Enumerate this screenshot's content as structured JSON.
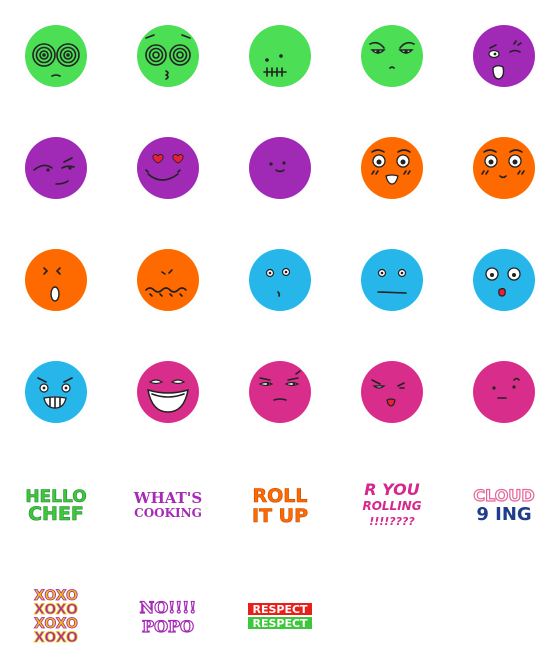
{
  "colors": {
    "green": "#4cde55",
    "purple": "#a029b6",
    "orange": "#ff6a00",
    "blue": "#27b6ea",
    "magenta": "#d92d8b",
    "ink": "#222222"
  },
  "faces": [
    {
      "color": "green",
      "expression": "dizzy-spiral-eyes"
    },
    {
      "color": "green",
      "expression": "dizzy-spiral-eyes-kiss"
    },
    {
      "color": "green",
      "expression": "stitched-mouth"
    },
    {
      "color": "green",
      "expression": "annoyed-eyes"
    },
    {
      "color": "purple",
      "expression": "shocked-wink"
    },
    {
      "color": "purple",
      "expression": "sly-side-eye"
    },
    {
      "color": "purple",
      "expression": "heart-eyes"
    },
    {
      "color": "purple",
      "expression": "small-smile"
    },
    {
      "color": "orange",
      "expression": "blush-grin"
    },
    {
      "color": "orange",
      "expression": "blush-smile"
    },
    {
      "color": "orange",
      "expression": "surprised-o"
    },
    {
      "color": "orange",
      "expression": "wavy-mouth"
    },
    {
      "color": "blue",
      "expression": "small-mouth"
    },
    {
      "color": "blue",
      "expression": "flat-mouth"
    },
    {
      "color": "blue",
      "expression": "wide-eyes-o"
    },
    {
      "color": "blue",
      "expression": "toothy-grin"
    },
    {
      "color": "magenta",
      "expression": "big-laugh"
    },
    {
      "color": "magenta",
      "expression": "smirk"
    },
    {
      "color": "magenta",
      "expression": "angry-pout"
    },
    {
      "color": "magenta",
      "expression": "sleepy"
    }
  ],
  "stickers": [
    {
      "lines": [
        "HELLO",
        "CHEF"
      ],
      "color": "#3ec63c"
    },
    {
      "lines": [
        "WHAT'S",
        "COOKING"
      ],
      "color": "#a52ab5"
    },
    {
      "lines": [
        "ROLL",
        "IT UP"
      ],
      "color": "#ff6a00"
    },
    {
      "lines": [
        "R YOU",
        "ROLLING",
        "!!!!????"
      ],
      "color": "#d6288c"
    },
    {
      "lines": [
        "CLOUD",
        "9 ING"
      ],
      "colors": [
        "#e4649b",
        "#1f3d8a"
      ]
    },
    {
      "lines": [
        "XOXO",
        "XOXO",
        "XOXO",
        "XOXO"
      ],
      "colors": [
        "#f2c200",
        "#a52ab5"
      ]
    },
    {
      "lines": [
        "NO!!!!",
        "POPO"
      ],
      "color": "#a52ab5"
    },
    {
      "lines": [
        "RESPECT",
        "RESPECT"
      ],
      "colors": [
        "#e8201c",
        "#3ec63c"
      ]
    }
  ]
}
